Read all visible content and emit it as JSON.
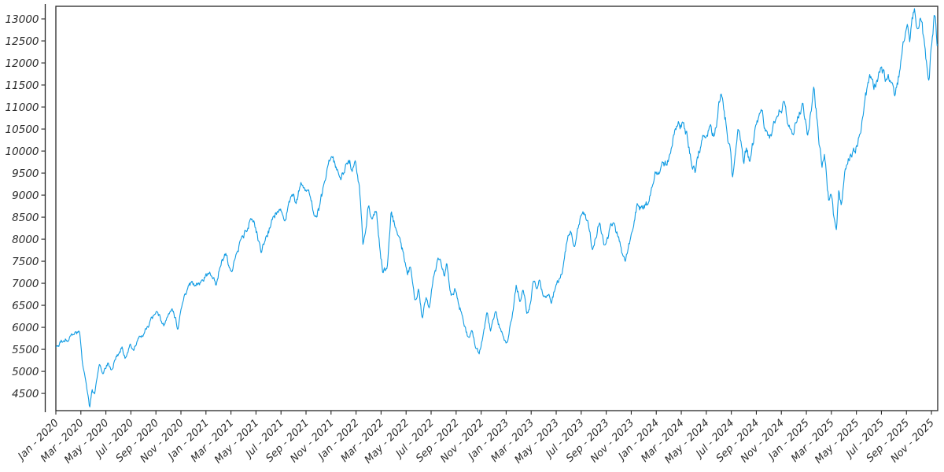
{
  "chart_data": {
    "type": "line",
    "title": "",
    "legend": null,
    "grid": false,
    "line_color": "#0F9BE3",
    "axis_color": "#262626",
    "background": "#ffffff",
    "y_ticks": [
      4500,
      5000,
      5500,
      6000,
      6500,
      7000,
      7500,
      8000,
      8500,
      9000,
      9500,
      10000,
      10500,
      11000,
      11500,
      12000,
      12500,
      13000
    ],
    "y_range": [
      4109,
      13286
    ],
    "x_range_months": [
      0,
      70.5
    ],
    "data_end_month": 70.5,
    "x_tick_months": [
      0,
      2,
      4,
      6,
      8,
      10,
      12,
      14,
      16,
      18,
      20,
      22,
      24,
      26,
      28,
      30,
      32,
      34,
      36,
      38,
      40,
      42,
      44,
      46,
      48,
      50,
      52,
      54,
      56,
      58,
      60,
      62,
      64,
      66,
      68,
      70
    ],
    "x_tick_labels": [
      "Jan - 2020",
      "Mar - 2020",
      "May - 2020",
      "Jul - 2020",
      "Sep - 2020",
      "Nov - 2020",
      "Jan - 2021",
      "Mar - 2021",
      "May - 2021",
      "Jul - 2021",
      "Sep - 2021",
      "Nov - 2021",
      "Jan - 2022",
      "Mar - 2022",
      "May - 2022",
      "Jul - 2022",
      "Sep - 2022",
      "Nov - 2022",
      "Jan - 2023",
      "Mar - 2023",
      "May - 2023",
      "Jul - 2023",
      "Sep - 2023",
      "Nov - 2023",
      "Jan - 2024",
      "Mar - 2024",
      "May - 2024",
      "Jul - 2024",
      "Sep - 2024",
      "Nov - 2024",
      "Jan - 2025",
      "Mar - 2025",
      "May - 2025",
      "Jul - 2025",
      "Sep - 2025",
      "Nov - 2025"
    ],
    "points_count": 1480,
    "noise": {
      "seed": 20,
      "ar": 0.6,
      "step": 0.02,
      "cap": 0.025
    },
    "anchors": [
      [
        0,
        5550
      ],
      [
        0.6,
        5700
      ],
      [
        1.2,
        5780
      ],
      [
        1.6,
        5940
      ],
      [
        1.9,
        5870
      ],
      [
        2.1,
        5250
      ],
      [
        2.4,
        4800
      ],
      [
        2.7,
        4140
      ],
      [
        2.9,
        4600
      ],
      [
        3.1,
        4480
      ],
      [
        3.5,
        5160
      ],
      [
        3.8,
        4950
      ],
      [
        4.2,
        5200
      ],
      [
        4.45,
        5000
      ],
      [
        4.7,
        5250
      ],
      [
        5.1,
        5450
      ],
      [
        5.3,
        5570
      ],
      [
        5.55,
        5300
      ],
      [
        5.9,
        5600
      ],
      [
        6.2,
        5500
      ],
      [
        6.5,
        5700
      ],
      [
        6.9,
        5800
      ],
      [
        7.2,
        5980
      ],
      [
        7.5,
        6100
      ],
      [
        7.9,
        6290
      ],
      [
        8.1,
        6320
      ],
      [
        8.4,
        6150
      ],
      [
        8.7,
        6050
      ],
      [
        9.1,
        6320
      ],
      [
        9.4,
        6340
      ],
      [
        9.75,
        5960
      ],
      [
        10.2,
        6600
      ],
      [
        10.6,
        7000
      ],
      [
        11.1,
        6950
      ],
      [
        11.6,
        7050
      ],
      [
        12.1,
        7180
      ],
      [
        12.5,
        7150
      ],
      [
        12.8,
        6940
      ],
      [
        13.1,
        7380
      ],
      [
        13.6,
        7700
      ],
      [
        14.0,
        7300
      ],
      [
        14.3,
        7500
      ],
      [
        14.8,
        7980
      ],
      [
        15.2,
        8200
      ],
      [
        15.5,
        8390
      ],
      [
        15.8,
        8430
      ],
      [
        16.1,
        8150
      ],
      [
        16.4,
        7680
      ],
      [
        16.8,
        8050
      ],
      [
        17.3,
        8450
      ],
      [
        17.9,
        8700
      ],
      [
        18.3,
        8430
      ],
      [
        18.8,
        9020
      ],
      [
        19.2,
        8790
      ],
      [
        19.6,
        9270
      ],
      [
        20.0,
        9100
      ],
      [
        20.2,
        9150
      ],
      [
        20.7,
        8550
      ],
      [
        21.1,
        8750
      ],
      [
        21.6,
        9400
      ],
      [
        22.0,
        9850
      ],
      [
        22.3,
        9760
      ],
      [
        22.8,
        9290
      ],
      [
        23.1,
        9550
      ],
      [
        23.4,
        9800
      ],
      [
        23.8,
        9620
      ],
      [
        24.0,
        9650
      ],
      [
        24.35,
        8900
      ],
      [
        24.55,
        7890
      ],
      [
        25.0,
        8790
      ],
      [
        25.3,
        8500
      ],
      [
        25.65,
        8600
      ],
      [
        25.9,
        7800
      ],
      [
        26.15,
        7230
      ],
      [
        26.5,
        7400
      ],
      [
        26.8,
        8660
      ],
      [
        27.1,
        8300
      ],
      [
        27.5,
        8020
      ],
      [
        27.8,
        7680
      ],
      [
        28.1,
        7180
      ],
      [
        28.35,
        7360
      ],
      [
        28.7,
        6640
      ],
      [
        29.0,
        6940
      ],
      [
        29.3,
        6160
      ],
      [
        29.6,
        6700
      ],
      [
        29.85,
        6460
      ],
      [
        30.3,
        7300
      ],
      [
        30.75,
        7540
      ],
      [
        31.05,
        7130
      ],
      [
        31.25,
        7450
      ],
      [
        31.6,
        6700
      ],
      [
        31.9,
        6880
      ],
      [
        32.6,
        6110
      ],
      [
        33.0,
        5750
      ],
      [
        33.25,
        5930
      ],
      [
        33.55,
        5520
      ],
      [
        33.85,
        5410
      ],
      [
        34.15,
        5850
      ],
      [
        34.45,
        6340
      ],
      [
        34.75,
        5930
      ],
      [
        35.15,
        6380
      ],
      [
        35.5,
        5980
      ],
      [
        35.85,
        5700
      ],
      [
        36.1,
        5680
      ],
      [
        36.5,
        6300
      ],
      [
        36.8,
        6950
      ],
      [
        37.1,
        6600
      ],
      [
        37.35,
        6880
      ],
      [
        37.65,
        6320
      ],
      [
        37.95,
        6540
      ],
      [
        38.2,
        7100
      ],
      [
        38.45,
        6820
      ],
      [
        38.65,
        7090
      ],
      [
        39.0,
        6730
      ],
      [
        39.3,
        6760
      ],
      [
        39.6,
        6550
      ],
      [
        40.0,
        7000
      ],
      [
        40.3,
        7100
      ],
      [
        40.6,
        7480
      ],
      [
        40.9,
        8000
      ],
      [
        41.15,
        8200
      ],
      [
        41.45,
        7770
      ],
      [
        41.9,
        8450
      ],
      [
        42.2,
        8570
      ],
      [
        42.55,
        8400
      ],
      [
        42.9,
        7770
      ],
      [
        43.5,
        8430
      ],
      [
        43.8,
        7860
      ],
      [
        44.6,
        8380
      ],
      [
        45.35,
        7590
      ],
      [
        45.55,
        7540
      ],
      [
        46.0,
        8100
      ],
      [
        46.5,
        8790
      ],
      [
        46.9,
        8700
      ],
      [
        47.4,
        8860
      ],
      [
        47.9,
        9560
      ],
      [
        48.2,
        9500
      ],
      [
        48.55,
        9800
      ],
      [
        48.8,
        9650
      ],
      [
        49.0,
        9857
      ],
      [
        49.4,
        10393
      ],
      [
        49.8,
        10660
      ],
      [
        50.1,
        10690
      ],
      [
        50.45,
        10400
      ],
      [
        50.9,
        9560
      ],
      [
        51.1,
        9500
      ],
      [
        51.7,
        10336
      ],
      [
        52.3,
        10571
      ],
      [
        52.65,
        10350
      ],
      [
        53.0,
        11107
      ],
      [
        53.3,
        11232
      ],
      [
        53.6,
        10600
      ],
      [
        53.9,
        10100
      ],
      [
        54.1,
        9400
      ],
      [
        54.35,
        10000
      ],
      [
        54.6,
        10500
      ],
      [
        55.0,
        9650
      ],
      [
        55.2,
        10050
      ],
      [
        55.45,
        9740
      ],
      [
        55.9,
        10500
      ],
      [
        56.4,
        10900
      ],
      [
        56.8,
        10450
      ],
      [
        57.2,
        10300
      ],
      [
        57.6,
        10750
      ],
      [
        58.2,
        11080
      ],
      [
        58.55,
        10600
      ],
      [
        58.9,
        10390
      ],
      [
        59.3,
        10800
      ],
      [
        59.7,
        11050
      ],
      [
        60.1,
        10330
      ],
      [
        60.6,
        11460
      ],
      [
        60.9,
        10680
      ],
      [
        61.1,
        10090
      ],
      [
        61.25,
        9650
      ],
      [
        61.45,
        9950
      ],
      [
        61.6,
        9500
      ],
      [
        61.8,
        8840
      ],
      [
        61.95,
        9020
      ],
      [
        62.2,
        8480
      ],
      [
        62.4,
        8230
      ],
      [
        62.6,
        9140
      ],
      [
        62.8,
        8730
      ],
      [
        63.1,
        9560
      ],
      [
        63.35,
        9860
      ],
      [
        63.7,
        9950
      ],
      [
        64.1,
        10150
      ],
      [
        64.5,
        10800
      ],
      [
        64.9,
        11460
      ],
      [
        65.2,
        11640
      ],
      [
        65.5,
        11500
      ],
      [
        65.8,
        11820
      ],
      [
        66.0,
        11857
      ],
      [
        66.3,
        11550
      ],
      [
        66.7,
        11590
      ],
      [
        67.1,
        11285
      ],
      [
        67.5,
        11820
      ],
      [
        67.8,
        12536
      ],
      [
        68.05,
        12860
      ],
      [
        68.25,
        12450
      ],
      [
        68.65,
        13300
      ],
      [
        68.85,
        12890
      ],
      [
        69.1,
        13130
      ],
      [
        69.45,
        12410
      ],
      [
        69.65,
        11875
      ],
      [
        69.8,
        11640
      ],
      [
        70.0,
        12360
      ],
      [
        70.2,
        12980
      ],
      [
        70.3,
        13070
      ],
      [
        70.42,
        12540
      ],
      [
        70.5,
        12450
      ]
    ]
  }
}
